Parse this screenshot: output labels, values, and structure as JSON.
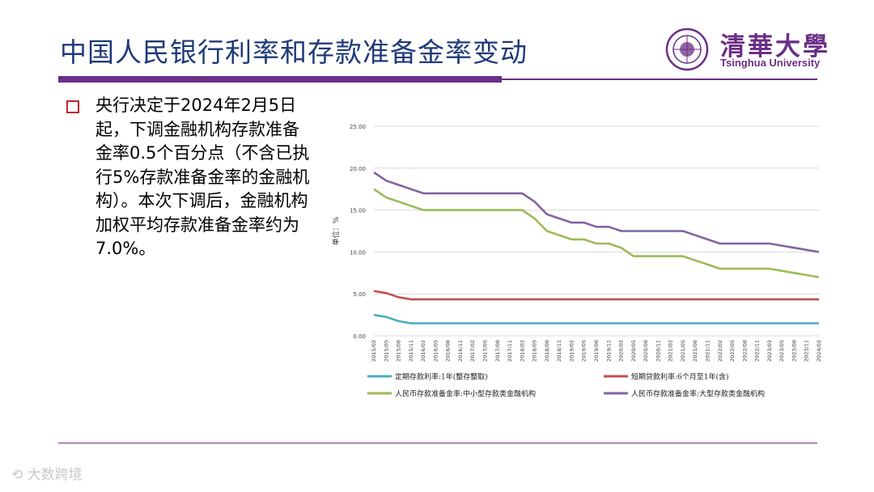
{
  "slide": {
    "title": "中国人民银行利率和存款准备金率变动",
    "bullet": "央行决定于2024年2月5日起，下调金融机构存款准备金率0.5个百分点（不含已执行5%存款准备金率的金融机构）。本次下调后，金融机构加权平均存款准备金率约为7.0%。",
    "watermark": "大数跨境"
  },
  "logo": {
    "cn": "清華大學",
    "en": "Tsinghua University",
    "seal_text": "清華大學 1911"
  },
  "colors": {
    "title": "#1f3a78",
    "accent": "#6b2f86",
    "bullet": "#c0262c",
    "grid": "#d9d9d9"
  },
  "chart_data": {
    "type": "line",
    "title": "",
    "ylabel": "单位：%",
    "xlabel": "",
    "ylim": [
      0,
      25
    ],
    "yticks": [
      "0.00",
      "5.00",
      "10.00",
      "15.00",
      "20.00",
      "25.00"
    ],
    "categories": [
      "2015/02",
      "2015/05",
      "2015/08",
      "2015/11",
      "2016/02",
      "2016/05",
      "2016/08",
      "2016/11",
      "2017/02",
      "2017/05",
      "2017/08",
      "2017/11",
      "2018/02",
      "2018/05",
      "2018/08",
      "2018/11",
      "2019/02",
      "2019/05",
      "2019/08",
      "2019/11",
      "2020/02",
      "2020/05",
      "2020/08",
      "2020/11",
      "2021/02",
      "2021/05",
      "2021/08",
      "2021/11",
      "2022/02",
      "2022/05",
      "2022/08",
      "2022/11",
      "2023/02",
      "2023/05",
      "2023/08",
      "2023/11",
      "2024/02"
    ],
    "legend_position": "bottom",
    "series": [
      {
        "name": "定期存款利率:1年(整存整取)",
        "color": "#4bacc6",
        "values": [
          2.5,
          2.25,
          1.75,
          1.5,
          1.5,
          1.5,
          1.5,
          1.5,
          1.5,
          1.5,
          1.5,
          1.5,
          1.5,
          1.5,
          1.5,
          1.5,
          1.5,
          1.5,
          1.5,
          1.5,
          1.5,
          1.5,
          1.5,
          1.5,
          1.5,
          1.5,
          1.5,
          1.5,
          1.5,
          1.5,
          1.5,
          1.5,
          1.5,
          1.5,
          1.5,
          1.5,
          1.5
        ]
      },
      {
        "name": "短期贷款利率:6个月至1年(含)",
        "color": "#c0504d",
        "values": [
          5.35,
          5.1,
          4.6,
          4.35,
          4.35,
          4.35,
          4.35,
          4.35,
          4.35,
          4.35,
          4.35,
          4.35,
          4.35,
          4.35,
          4.35,
          4.35,
          4.35,
          4.35,
          4.35,
          4.35,
          4.35,
          4.35,
          4.35,
          4.35,
          4.35,
          4.35,
          4.35,
          4.35,
          4.35,
          4.35,
          4.35,
          4.35,
          4.35,
          4.35,
          4.35,
          4.35,
          4.35
        ]
      },
      {
        "name": "人民币存款准备金率:中小型存款类金融机构",
        "color": "#9bbb59",
        "values": [
          17.5,
          16.5,
          16.0,
          15.5,
          15.0,
          15.0,
          15.0,
          15.0,
          15.0,
          15.0,
          15.0,
          15.0,
          15.0,
          14.0,
          12.5,
          12.0,
          11.5,
          11.5,
          11.0,
          11.0,
          10.5,
          9.5,
          9.5,
          9.5,
          9.5,
          9.5,
          9.0,
          8.5,
          8.0,
          8.0,
          8.0,
          8.0,
          8.0,
          7.75,
          7.5,
          7.25,
          7.0
        ]
      },
      {
        "name": "人民币存款准备金率:大型存款类金融机构",
        "color": "#8064a2",
        "values": [
          19.5,
          18.5,
          18.0,
          17.5,
          17.0,
          17.0,
          17.0,
          17.0,
          17.0,
          17.0,
          17.0,
          17.0,
          17.0,
          16.0,
          14.5,
          14.0,
          13.5,
          13.5,
          13.0,
          13.0,
          12.5,
          12.5,
          12.5,
          12.5,
          12.5,
          12.5,
          12.0,
          11.5,
          11.0,
          11.0,
          11.0,
          11.0,
          11.0,
          10.75,
          10.5,
          10.25,
          10.0
        ]
      }
    ]
  }
}
